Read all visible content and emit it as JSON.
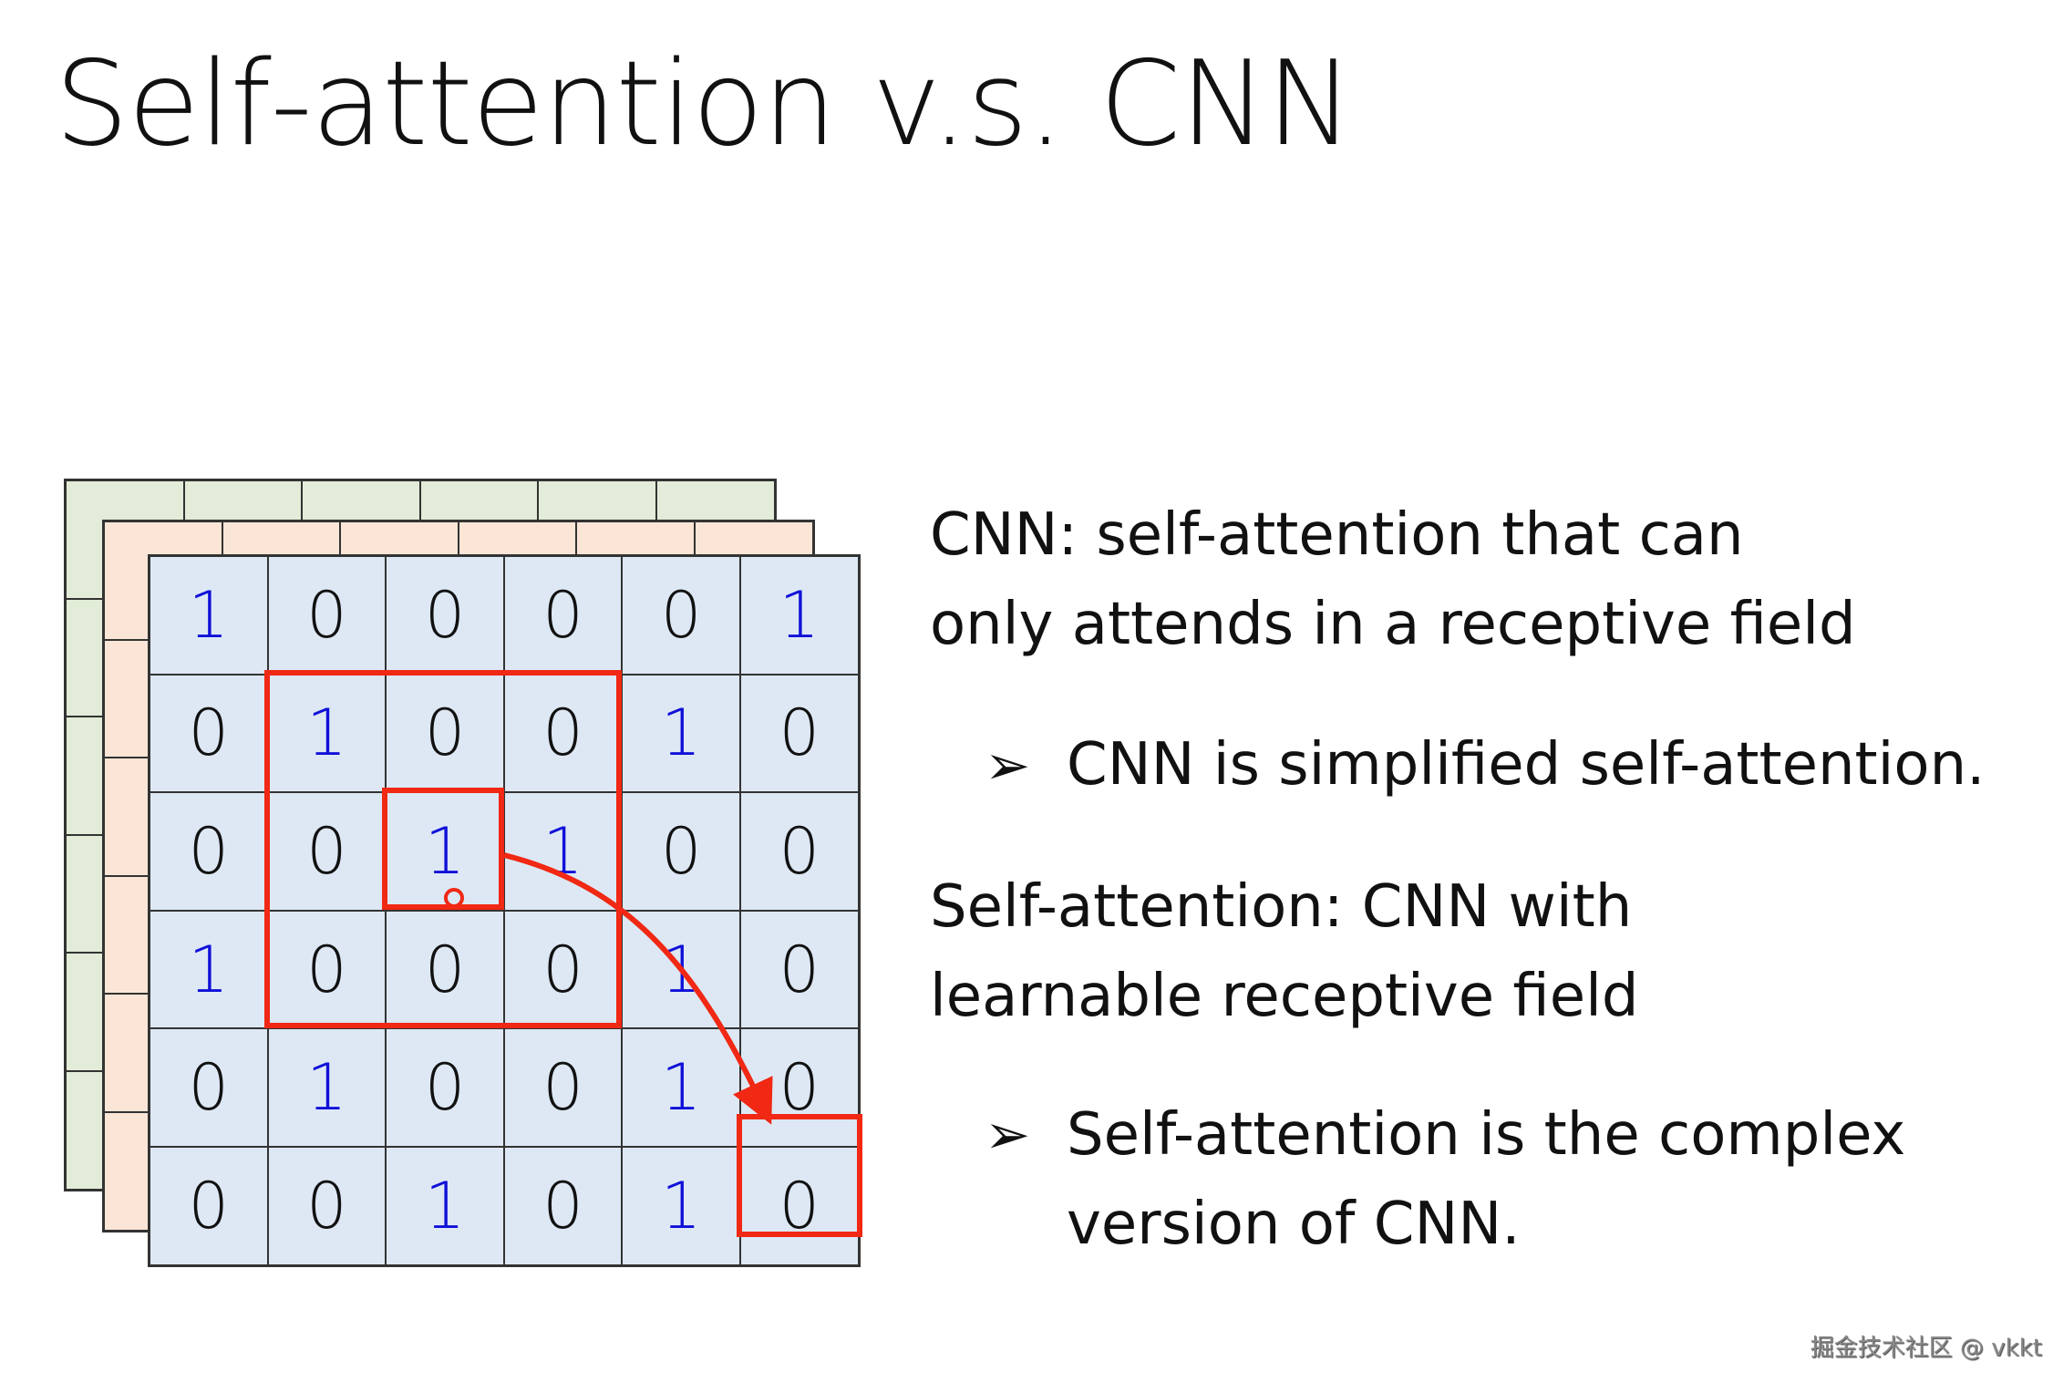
{
  "title": "Self-attention v.s. CNN",
  "grid_values": [
    [
      1,
      0,
      0,
      0,
      0,
      1
    ],
    [
      0,
      1,
      0,
      0,
      1,
      0
    ],
    [
      0,
      0,
      1,
      1,
      0,
      0
    ],
    [
      1,
      0,
      0,
      0,
      1,
      0
    ],
    [
      0,
      1,
      0,
      0,
      1,
      0
    ],
    [
      0,
      0,
      1,
      0,
      1,
      0
    ]
  ],
  "colors": {
    "front_layer": "#dde8f4",
    "middle_layer": "#fbe5d6",
    "back_layer": "#e2ecd8",
    "highlight": "#f02814",
    "one": "#1010d8"
  },
  "text": {
    "cnn_line1": "CNN: self-attention that can",
    "cnn_line2": "only attends in a receptive field",
    "bullet1": "CNN is simplified self-attention.",
    "sa_line1": "Self-attention: CNN with",
    "sa_line2": "learnable receptive field",
    "bullet2_line1": "Self-attention is the complex",
    "bullet2_line2": "version of CNN."
  },
  "bullet_icon": "arrowhead-bullet",
  "watermark": "掘金技术社区 @ vkkt"
}
